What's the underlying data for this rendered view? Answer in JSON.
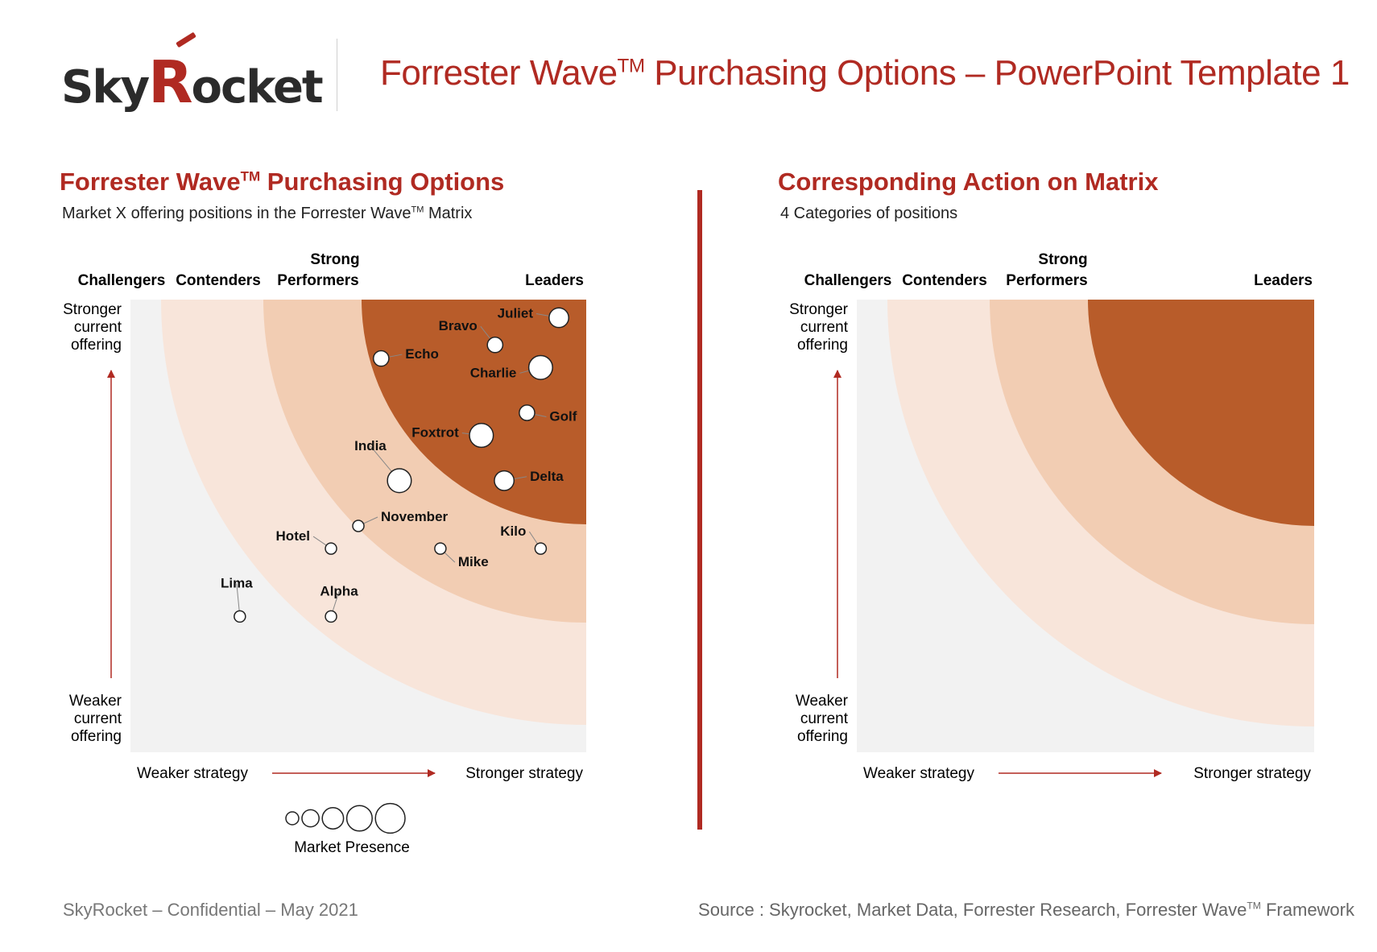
{
  "logo": {
    "part1": "Sky",
    "part2": "R",
    "part3": "ocket"
  },
  "header": {
    "title": "Forrester Wave",
    "title_tm": "TM",
    "title_rest": " Purchasing Options – PowerPoint Template 1"
  },
  "left": {
    "title": "Forrester Wave",
    "title_tm": "TM",
    "title_rest": " Purchasing Options",
    "subtitle": "Market X offering positions in the Forrester Wave",
    "subtitle_tm": "TM",
    "subtitle_rest": " Matrix"
  },
  "right": {
    "title": "Corresponding Action on Matrix",
    "subtitle": "4 Categories of positions"
  },
  "categories": {
    "challengers": "Challengers",
    "contenders": "Contenders",
    "strong_line1": "Strong",
    "strong_line2": "Performers",
    "leaders": "Leaders"
  },
  "axes": {
    "y_top": [
      "Stronger",
      "current",
      "offering"
    ],
    "y_bottom": [
      "Weaker",
      "current",
      "offering"
    ],
    "x_left": "Weaker strategy",
    "x_right": "Stronger strategy"
  },
  "colors": {
    "accent": "#b02a22",
    "band_outer": "#f2f2f2",
    "band_contenders": "#f8e5da",
    "band_strong": "#f2cdb3",
    "band_leaders": "#b85c2a"
  },
  "chart_data": {
    "type": "scatter",
    "x_range": [
      0,
      100
    ],
    "y_range": [
      0,
      100
    ],
    "size_scale": [
      1,
      5
    ],
    "points": [
      {
        "name": "Juliet",
        "x": 94,
        "y": 96,
        "size": 3
      },
      {
        "name": "Bravo",
        "x": 80,
        "y": 90,
        "size": 2
      },
      {
        "name": "Echo",
        "x": 55,
        "y": 87,
        "size": 2
      },
      {
        "name": "Charlie",
        "x": 90,
        "y": 85,
        "size": 4
      },
      {
        "name": "Golf",
        "x": 87,
        "y": 75,
        "size": 2
      },
      {
        "name": "Foxtrot",
        "x": 77,
        "y": 70,
        "size": 4
      },
      {
        "name": "India",
        "x": 59,
        "y": 60,
        "size": 4
      },
      {
        "name": "Delta",
        "x": 82,
        "y": 60,
        "size": 3
      },
      {
        "name": "November",
        "x": 50,
        "y": 50,
        "size": 1
      },
      {
        "name": "Hotel",
        "x": 44,
        "y": 45,
        "size": 1
      },
      {
        "name": "Mike",
        "x": 68,
        "y": 45,
        "size": 1
      },
      {
        "name": "Kilo",
        "x": 90,
        "y": 45,
        "size": 1
      },
      {
        "name": "Lima",
        "x": 24,
        "y": 30,
        "size": 1
      },
      {
        "name": "Alpha",
        "x": 44,
        "y": 30,
        "size": 1
      }
    ]
  },
  "legend": {
    "label": "Market Presence",
    "sizes": [
      1,
      2,
      3,
      4,
      5
    ]
  },
  "footer": {
    "left": "SkyRocket – Confidential – May 2021",
    "source": "Source : Skyrocket, Market Data, Forrester Research, Forrester Wave",
    "source_tm": "TM",
    "source_rest": " Framework"
  }
}
